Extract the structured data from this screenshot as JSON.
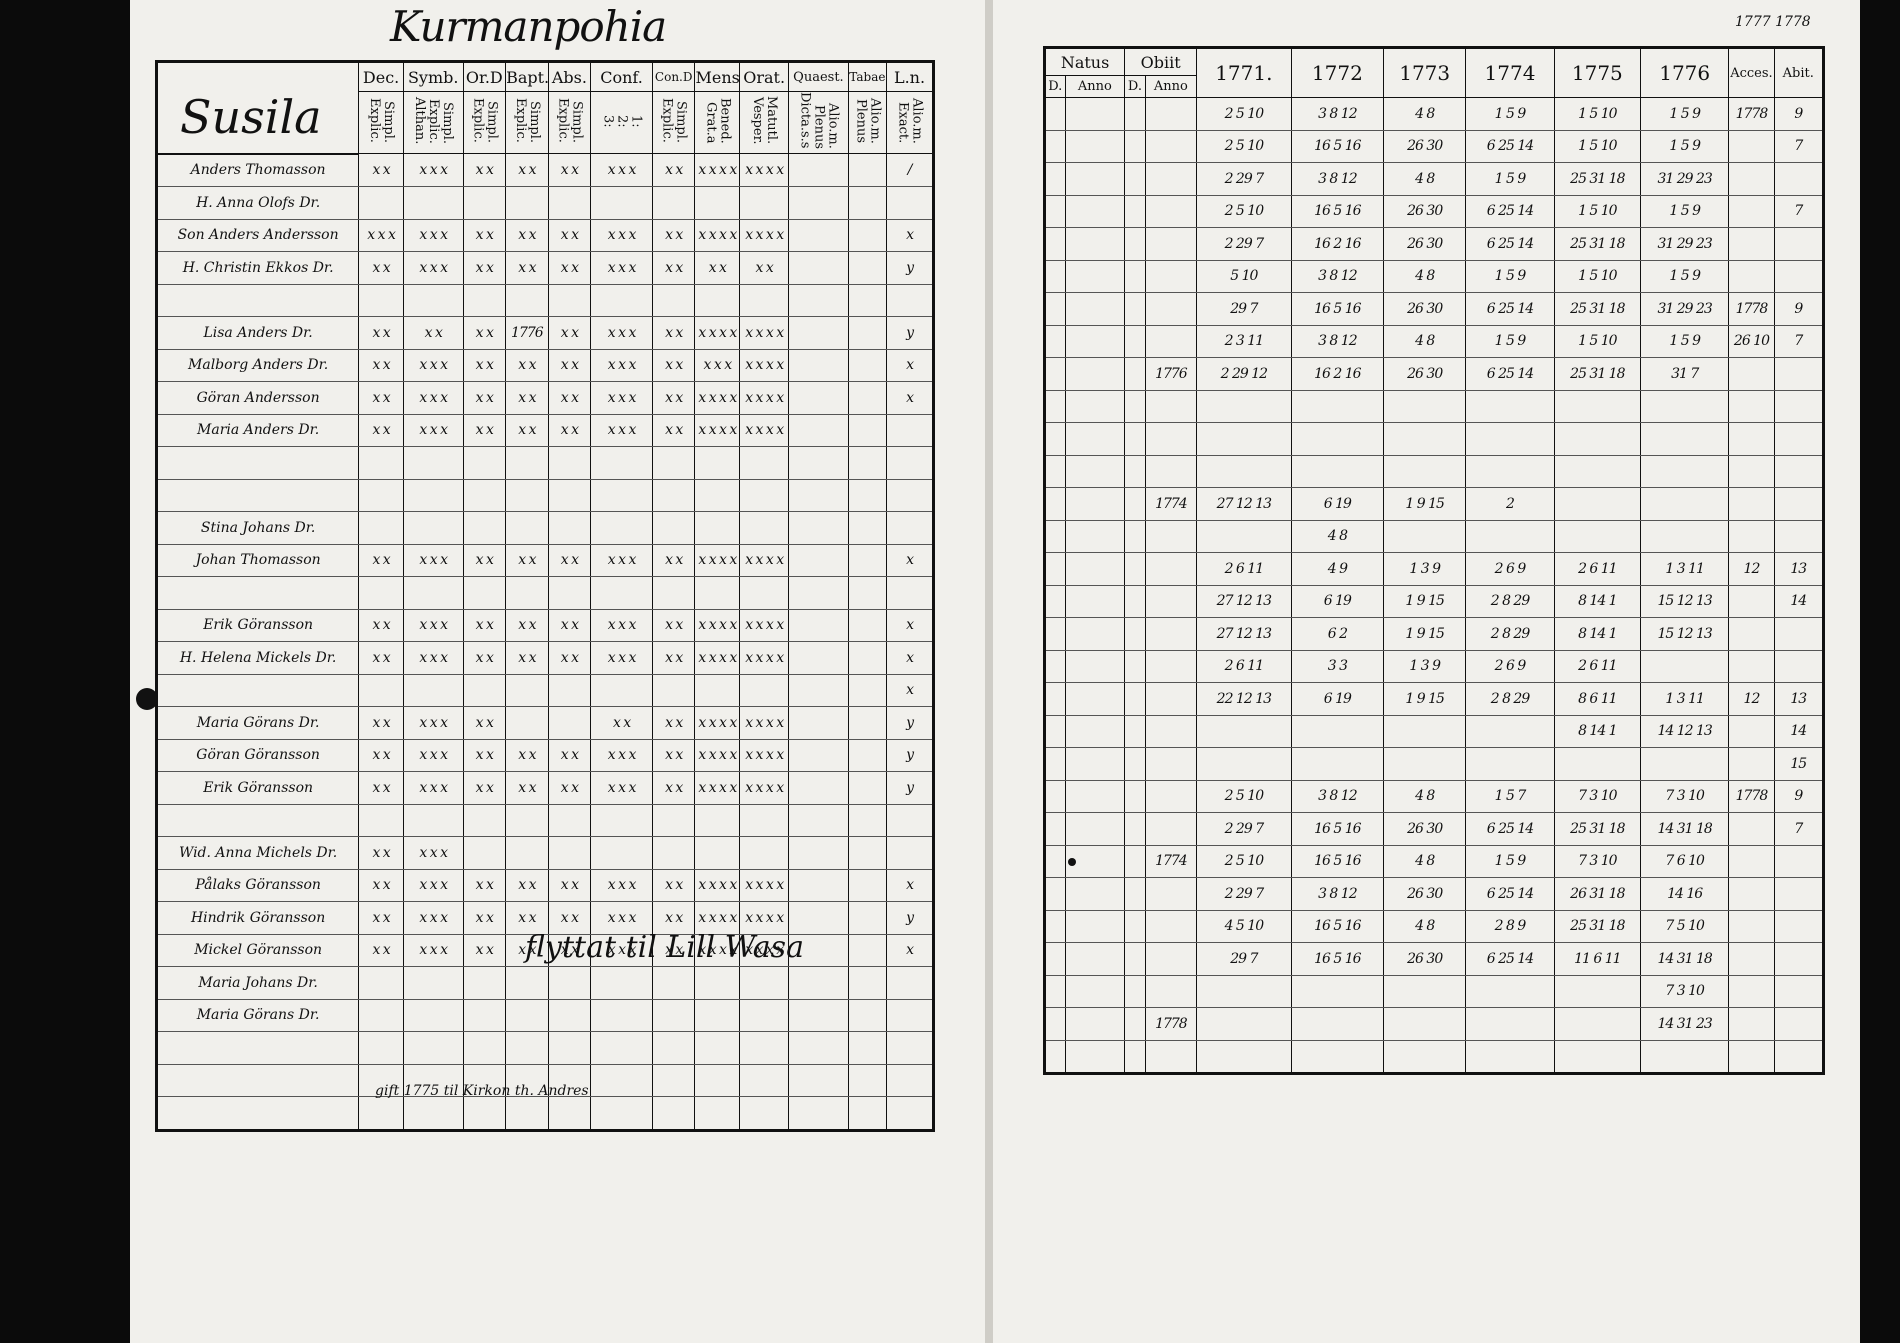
{
  "left_page": {
    "title": "Kurmanpohia",
    "parish": "Susila",
    "headers": {
      "name": "",
      "dec": {
        "top": "Dec.",
        "sub": [
          "Explic.",
          "Simpl."
        ]
      },
      "symb": {
        "top": "Symb.",
        "sub": [
          "Althan.",
          "Explic.",
          "Simpl."
        ]
      },
      "ord": {
        "top": "Or.D",
        "sub": [
          "Explic.",
          "Simpl."
        ]
      },
      "bapt": {
        "top": "Bapt.",
        "sub": [
          "Explic.",
          "Simpl."
        ]
      },
      "abs": {
        "top": "Abs.",
        "sub": [
          "Explic.",
          "Simpl."
        ]
      },
      "conf": {
        "top": "Conf.",
        "sub": [
          "3:",
          "2:",
          "1:"
        ]
      },
      "cond": {
        "top": "Con.D",
        "sub": [
          "Explic.",
          "Simpl."
        ]
      },
      "mens": {
        "top": "Mens.",
        "sub": [
          "Grat.a",
          "Bened."
        ]
      },
      "orat": {
        "top": "Orat.",
        "sub": [
          "Vesper.",
          "Matutl."
        ]
      },
      "quaest": {
        "top": "Quaest.",
        "sub": [
          "Dicta.s.s",
          "Plenus",
          "Alio.m."
        ]
      },
      "tabae": {
        "top": "Tabae",
        "sub": [
          "Plenus",
          "Alio.m."
        ]
      },
      "ln": {
        "top": "L.n.",
        "sub": [
          "Exact.",
          "Alio.m."
        ]
      }
    },
    "rows": [
      {
        "name": "Anders Thomasson",
        "dec": "x x",
        "symb": "x x x",
        "ord": "x x",
        "bapt": "x x",
        "abs": "x x",
        "conf": "x x x",
        "cond": "x x",
        "mens": "x x x x",
        "orat": "x x x x",
        "ln": "/"
      },
      {
        "name": "H. Anna Olofs Dr.",
        "dec": "",
        "symb": "",
        "ord": "",
        "bapt": "",
        "abs": "",
        "conf": "",
        "cond": "",
        "mens": "",
        "orat": "",
        "ln": ""
      },
      {
        "name": "Son Anders Andersson",
        "dec": "x x x",
        "symb": "x x x",
        "ord": "x x",
        "bapt": "x x",
        "abs": "x x",
        "conf": "x x x",
        "cond": "x x",
        "mens": "x x x x",
        "orat": "x x x x",
        "ln": "x"
      },
      {
        "name": "H. Christin Ekkos Dr.",
        "dec": "x x",
        "symb": "x x x",
        "ord": "x x",
        "bapt": "x x",
        "abs": "x x",
        "conf": "x x x",
        "cond": "x x",
        "mens": "x x",
        "orat": "x x",
        "ln": "y"
      },
      {
        "name": "",
        "dec": "",
        "symb": "",
        "ord": "",
        "bapt": "",
        "abs": "",
        "conf": "",
        "cond": "",
        "mens": "",
        "orat": "",
        "ln": ""
      },
      {
        "name": "Lisa Anders Dr.",
        "dec": "x x",
        "symb": "x x",
        "ord": "x x",
        "bapt": "1776",
        "abs": "x x",
        "conf": "x x x",
        "cond": "x x",
        "mens": "x x x x",
        "orat": "x x x x",
        "ln": "y"
      },
      {
        "name": "Malborg Anders Dr.",
        "dec": "x x",
        "symb": "x x x",
        "ord": "x x",
        "bapt": "x x",
        "abs": "x x",
        "conf": "x x x",
        "cond": "x x",
        "mens": "x x x",
        "orat": "x x x x",
        "ln": "x"
      },
      {
        "name": "Göran Andersson",
        "dec": "x x",
        "symb": "x x x",
        "ord": "x x",
        "bapt": "x x",
        "abs": "x x",
        "conf": "x x x",
        "cond": "x x",
        "mens": "x x x x",
        "orat": "x x x x",
        "ln": "x"
      },
      {
        "name": "Maria Anders Dr.",
        "dec": "x x",
        "symb": "x x x",
        "ord": "x x",
        "bapt": "x x",
        "abs": "x x",
        "conf": "x x x",
        "cond": "x x",
        "mens": "x x x x",
        "orat": "x x x x",
        "ln": ""
      },
      {
        "name": "",
        "dec": "",
        "symb": "",
        "ord": "",
        "bapt": "",
        "abs": "",
        "conf": "",
        "cond": "",
        "mens": "",
        "orat": "",
        "ln": ""
      },
      {
        "name": "",
        "dec": "",
        "symb": "",
        "ord": "",
        "bapt": "",
        "abs": "",
        "conf": "",
        "cond": "",
        "mens": "",
        "orat": "",
        "ln": ""
      },
      {
        "name": "Stina Johans Dr.",
        "dec": "",
        "symb": "",
        "ord": "",
        "bapt": "",
        "abs": "",
        "conf": "",
        "cond": "",
        "mens": "",
        "orat": "",
        "ln": ""
      },
      {
        "name": "Johan Thomasson",
        "dec": "x x",
        "symb": "x x x",
        "ord": "x x",
        "bapt": "x x",
        "abs": "x x",
        "conf": "x x x",
        "cond": "x x",
        "mens": "x x x x",
        "orat": "x x x x",
        "ln": "x"
      },
      {
        "name": "",
        "dec": "",
        "symb": "",
        "ord": "",
        "bapt": "",
        "abs": "",
        "conf": "",
        "cond": "",
        "mens": "",
        "orat": "",
        "ln": ""
      },
      {
        "name": "Erik Göransson",
        "dec": "x x",
        "symb": "x x x",
        "ord": "x x",
        "bapt": "x x",
        "abs": "x x",
        "conf": "x x x",
        "cond": "x x",
        "mens": "x x x x",
        "orat": "x x x x",
        "ln": "x"
      },
      {
        "name": "H. Helena Mickels Dr.",
        "dec": "x x",
        "symb": "x x x",
        "ord": "x x",
        "bapt": "x x",
        "abs": "x x",
        "conf": "x x x",
        "cond": "x x",
        "mens": "x x x x",
        "orat": "x x x x",
        "ln": "x"
      },
      {
        "name": "",
        "dec": "",
        "symb": "",
        "ord": "",
        "bapt": "",
        "abs": "",
        "conf": "",
        "cond": "",
        "mens": "",
        "orat": "",
        "ln": "x"
      },
      {
        "name": "Maria Görans Dr.",
        "dec": "x x",
        "symb": "x x x",
        "ord": "x x",
        "bapt": "",
        "abs": "",
        "conf": "x x",
        "cond": "x x",
        "mens": "x x x x",
        "orat": "x x x x",
        "ln": "y"
      },
      {
        "name": "Göran Göransson",
        "dec": "x x",
        "symb": "x x x",
        "ord": "x x",
        "bapt": "x x",
        "abs": "x x",
        "conf": "x x x",
        "cond": "x x",
        "mens": "x x x x",
        "orat": "x x x x",
        "ln": "y"
      },
      {
        "name": "Erik Göransson",
        "dec": "x x",
        "symb": "x x x",
        "ord": "x x",
        "bapt": "x x",
        "abs": "x x",
        "conf": "x x x",
        "cond": "x x",
        "mens": "x x x x",
        "orat": "x x x x",
        "ln": "y"
      },
      {
        "name": "",
        "dec": "",
        "symb": "",
        "ord": "",
        "bapt": "",
        "abs": "",
        "conf": "",
        "cond": "",
        "mens": "",
        "orat": "",
        "ln": ""
      },
      {
        "name": "Wid. Anna Michels Dr.",
        "dec": "x x",
        "symb": "x x x",
        "ord": "",
        "bapt": "",
        "abs": "",
        "conf": "",
        "cond": "",
        "mens": "",
        "orat": "",
        "ln": ""
      },
      {
        "name": "Pålaks Göransson",
        "dec": "x x",
        "symb": "x x x",
        "ord": "x x",
        "bapt": "x x",
        "abs": "x x",
        "conf": "x x x",
        "cond": "x x",
        "mens": "x x x x",
        "orat": "x x x x",
        "ln": "x"
      },
      {
        "name": "Hindrik Göransson",
        "dec": "x x",
        "symb": "x x x",
        "ord": "x x",
        "bapt": "x x",
        "abs": "x x",
        "conf": "x x x",
        "cond": "x x",
        "mens": "x x x x",
        "orat": "x x x x",
        "ln": "y"
      },
      {
        "name": "Mickel Göransson",
        "dec": "x x",
        "symb": "x x x",
        "ord": "x x",
        "bapt": "x x",
        "abs": "x x",
        "conf": "x x x",
        "cond": "x x",
        "mens": "x x x x",
        "orat": "x x x x",
        "ln": "x"
      },
      {
        "name": "Maria Johans Dr.",
        "dec": "",
        "symb": "",
        "ord": "",
        "bapt": "",
        "abs": "",
        "conf": "",
        "cond": "",
        "mens": "",
        "orat": "",
        "ln": ""
      },
      {
        "name": "Maria Görans Dr.",
        "dec": "",
        "symb": "",
        "ord": "",
        "bapt": "",
        "abs": "",
        "conf": "",
        "cond": "",
        "mens": "",
        "orat": "",
        "ln": ""
      },
      {
        "name": "",
        "dec": "",
        "symb": "",
        "ord": "",
        "bapt": "",
        "abs": "",
        "conf": "",
        "cond": "",
        "mens": "",
        "orat": "",
        "ln": ""
      },
      {
        "name": "",
        "dec": "",
        "symb": "",
        "ord": "",
        "bapt": "",
        "abs": "",
        "conf": "",
        "cond": "",
        "mens": "",
        "orat": "",
        "ln": ""
      },
      {
        "name": "",
        "dec": "",
        "symb": "",
        "ord": "",
        "bapt": "",
        "abs": "",
        "conf": "",
        "cond": "",
        "mens": "",
        "orat": "",
        "ln": ""
      }
    ],
    "notes": {
      "row_moved": "flyttat til Lill Wasa",
      "row_married": "gift 1775 til Kirkon th. Andres"
    }
  },
  "right_page": {
    "corner": "1777 1778",
    "headers": {
      "natus": "Natus",
      "obiit": "Obiit",
      "natus_sub": [
        "D.",
        "Anno"
      ],
      "obiit_sub": [
        "D.",
        "Anno"
      ],
      "years": [
        "1771.",
        "1772",
        "1773",
        "1774",
        "1775",
        "1776"
      ],
      "accessit": "Acces.",
      "abiit": "Abit."
    },
    "rows": [
      {
        "obiit_anno": "",
        "y1771": "2 5 10",
        "y1772": "3 8 12",
        "y1773": "4 8",
        "y1774": "1 5 9",
        "y1775": "1 5 10",
        "y1776": "1 5 9",
        "acc": "1778",
        "ab": "9"
      },
      {
        "obiit_anno": "",
        "y1771": "2 5 10",
        "y1772": "16 5 16",
        "y1773": "26 30",
        "y1774": "6 25 14",
        "y1775": "1 5 10",
        "y1776": "1 5 9",
        "acc": "",
        "ab": "7"
      },
      {
        "obiit_anno": "",
        "y1771": "2 29 7",
        "y1772": "3 8 12",
        "y1773": "4 8",
        "y1774": "1 5 9",
        "y1775": "25 31 18",
        "y1776": "31 29 23",
        "acc": "",
        "ab": ""
      },
      {
        "obiit_anno": "",
        "y1771": "2 5 10",
        "y1772": "16 5 16",
        "y1773": "26 30",
        "y1774": "6 25 14",
        "y1775": "1 5 10",
        "y1776": "1 5 9",
        "acc": "",
        "ab": "7"
      },
      {
        "obiit_anno": "",
        "y1771": "2 29 7",
        "y1772": "16 2 16",
        "y1773": "26 30",
        "y1774": "6 25 14",
        "y1775": "25 31 18",
        "y1776": "31 29 23",
        "acc": "",
        "ab": ""
      },
      {
        "obiit_anno": "",
        "y1771": "5 10",
        "y1772": "3 8 12",
        "y1773": "4 8",
        "y1774": "1 5 9",
        "y1775": "1 5 10",
        "y1776": "1 5 9",
        "acc": "",
        "ab": ""
      },
      {
        "obiit_anno": "",
        "y1771": "29 7",
        "y1772": "16 5 16",
        "y1773": "26 30",
        "y1774": "6 25 14",
        "y1775": "25 31 18",
        "y1776": "31 29 23",
        "acc": "1778",
        "ab": "9"
      },
      {
        "obiit_anno": "",
        "y1771": "2 3 11",
        "y1772": "3 8 12",
        "y1773": "4 8",
        "y1774": "1 5 9",
        "y1775": "1 5 10",
        "y1776": "1 5 9",
        "acc": "26 10",
        "ab": "7"
      },
      {
        "obiit_anno": "1776",
        "y1771": "2 29 12",
        "y1772": "16 2 16",
        "y1773": "26 30",
        "y1774": "6 25 14",
        "y1775": "25 31 18",
        "y1776": "31 7",
        "acc": "",
        "ab": ""
      },
      {
        "obiit_anno": "",
        "y1771": "",
        "y1772": "",
        "y1773": "",
        "y1774": "",
        "y1775": "",
        "y1776": "",
        "acc": "",
        "ab": ""
      },
      {
        "obiit_anno": "",
        "y1771": "",
        "y1772": "",
        "y1773": "",
        "y1774": "",
        "y1775": "",
        "y1776": "",
        "acc": "",
        "ab": ""
      },
      {
        "obiit_anno": "",
        "y1771": "",
        "y1772": "",
        "y1773": "",
        "y1774": "",
        "y1775": "",
        "y1776": "",
        "acc": "",
        "ab": ""
      },
      {
        "obiit_anno": "1774",
        "y1771": "27 12 13",
        "y1772": "6 19",
        "y1773": "1 9 15",
        "y1774": "2",
        "y1775": "",
        "y1776": "",
        "acc": "",
        "ab": ""
      },
      {
        "obiit_anno": "",
        "y1771": "",
        "y1772": "4 8",
        "y1773": "",
        "y1774": "",
        "y1775": "",
        "y1776": "",
        "acc": "",
        "ab": ""
      },
      {
        "obiit_anno": "",
        "y1771": "2 6 11",
        "y1772": "4 9",
        "y1773": "1 3 9",
        "y1774": "2 6 9",
        "y1775": "2 6 11",
        "y1776": "1 3 11",
        "acc": "12",
        "ab": "13"
      },
      {
        "obiit_anno": "",
        "y1771": "27 12 13",
        "y1772": "6 19",
        "y1773": "1 9 15",
        "y1774": "2 8 29",
        "y1775": "8 14 1",
        "y1776": "15 12 13",
        "acc": "",
        "ab": "14"
      },
      {
        "obiit_anno": "",
        "y1771": "27 12 13",
        "y1772": "6 2",
        "y1773": "1 9 15",
        "y1774": "2 8 29",
        "y1775": "8 14 1",
        "y1776": "15 12 13",
        "acc": "",
        "ab": ""
      },
      {
        "obiit_anno": "",
        "y1771": "2 6 11",
        "y1772": "3 3",
        "y1773": "1 3 9",
        "y1774": "2 6 9",
        "y1775": "2 6 11",
        "y1776": "",
        "acc": "",
        "ab": ""
      },
      {
        "obiit_anno": "",
        "y1771": "22 12 13",
        "y1772": "6 19",
        "y1773": "1 9 15",
        "y1774": "2 8 29",
        "y1775": "8 6 11",
        "y1776": "1 3 11",
        "acc": "12",
        "ab": "13"
      },
      {
        "obiit_anno": "",
        "y1771": "",
        "y1772": "",
        "y1773": "",
        "y1774": "",
        "y1775": "8 14 1",
        "y1776": "14 12 13",
        "acc": "",
        "ab": "14"
      },
      {
        "obiit_anno": "",
        "y1771": "",
        "y1772": "",
        "y1773": "",
        "y1774": "",
        "y1775": "",
        "y1776": "",
        "acc": "",
        "ab": "15"
      },
      {
        "obiit_anno": "",
        "y1771": "2 5 10",
        "y1772": "3 8 12",
        "y1773": "4 8",
        "y1774": "1 5 7",
        "y1775": "7 3 10",
        "y1776": "7 3 10",
        "acc": "1778",
        "ab": "9"
      },
      {
        "obiit_anno": "",
        "y1771": "2 29 7",
        "y1772": "16 5 16",
        "y1773": "26 30",
        "y1774": "6 25 14",
        "y1775": "25 31 18",
        "y1776": "14 31 18",
        "acc": "",
        "ab": "7"
      },
      {
        "obiit_anno": "1774",
        "y1771": "2 5 10",
        "y1772": "16 5 16",
        "y1773": "4 8",
        "y1774": "1 5 9",
        "y1775": "7 3 10",
        "y1776": "7 6 10",
        "acc": "",
        "ab": ""
      },
      {
        "obiit_anno": "",
        "y1771": "2 29 7",
        "y1772": "3 8 12",
        "y1773": "26 30",
        "y1774": "6 25 14",
        "y1775": "26 31 18",
        "y1776": "14 16",
        "acc": "",
        "ab": ""
      },
      {
        "obiit_anno": "",
        "y1771": "4 5 10",
        "y1772": "16 5 16",
        "y1773": "4 8",
        "y1774": "2 8 9",
        "y1775": "25 31 18",
        "y1776": "7 5 10",
        "acc": "",
        "ab": ""
      },
      {
        "obiit_anno": "",
        "y1771": "29 7",
        "y1772": "16 5 16",
        "y1773": "26 30",
        "y1774": "6 25 14",
        "y1775": "11 6 11",
        "y1776": "14 31 18",
        "acc": "",
        "ab": ""
      },
      {
        "obiit_anno": "",
        "y1771": "",
        "y1772": "",
        "y1773": "",
        "y1774": "",
        "y1775": "",
        "y1776": "7 3 10",
        "acc": "",
        "ab": ""
      },
      {
        "obiit_anno": "1778",
        "y1771": "",
        "y1772": "",
        "y1773": "",
        "y1774": "",
        "y1775": "",
        "y1776": "14 31 23",
        "acc": "",
        "ab": ""
      },
      {
        "obiit_anno": "",
        "y1771": "",
        "y1772": "",
        "y1773": "",
        "y1774": "",
        "y1775": "",
        "y1776": "",
        "acc": "",
        "ab": ""
      }
    ]
  }
}
